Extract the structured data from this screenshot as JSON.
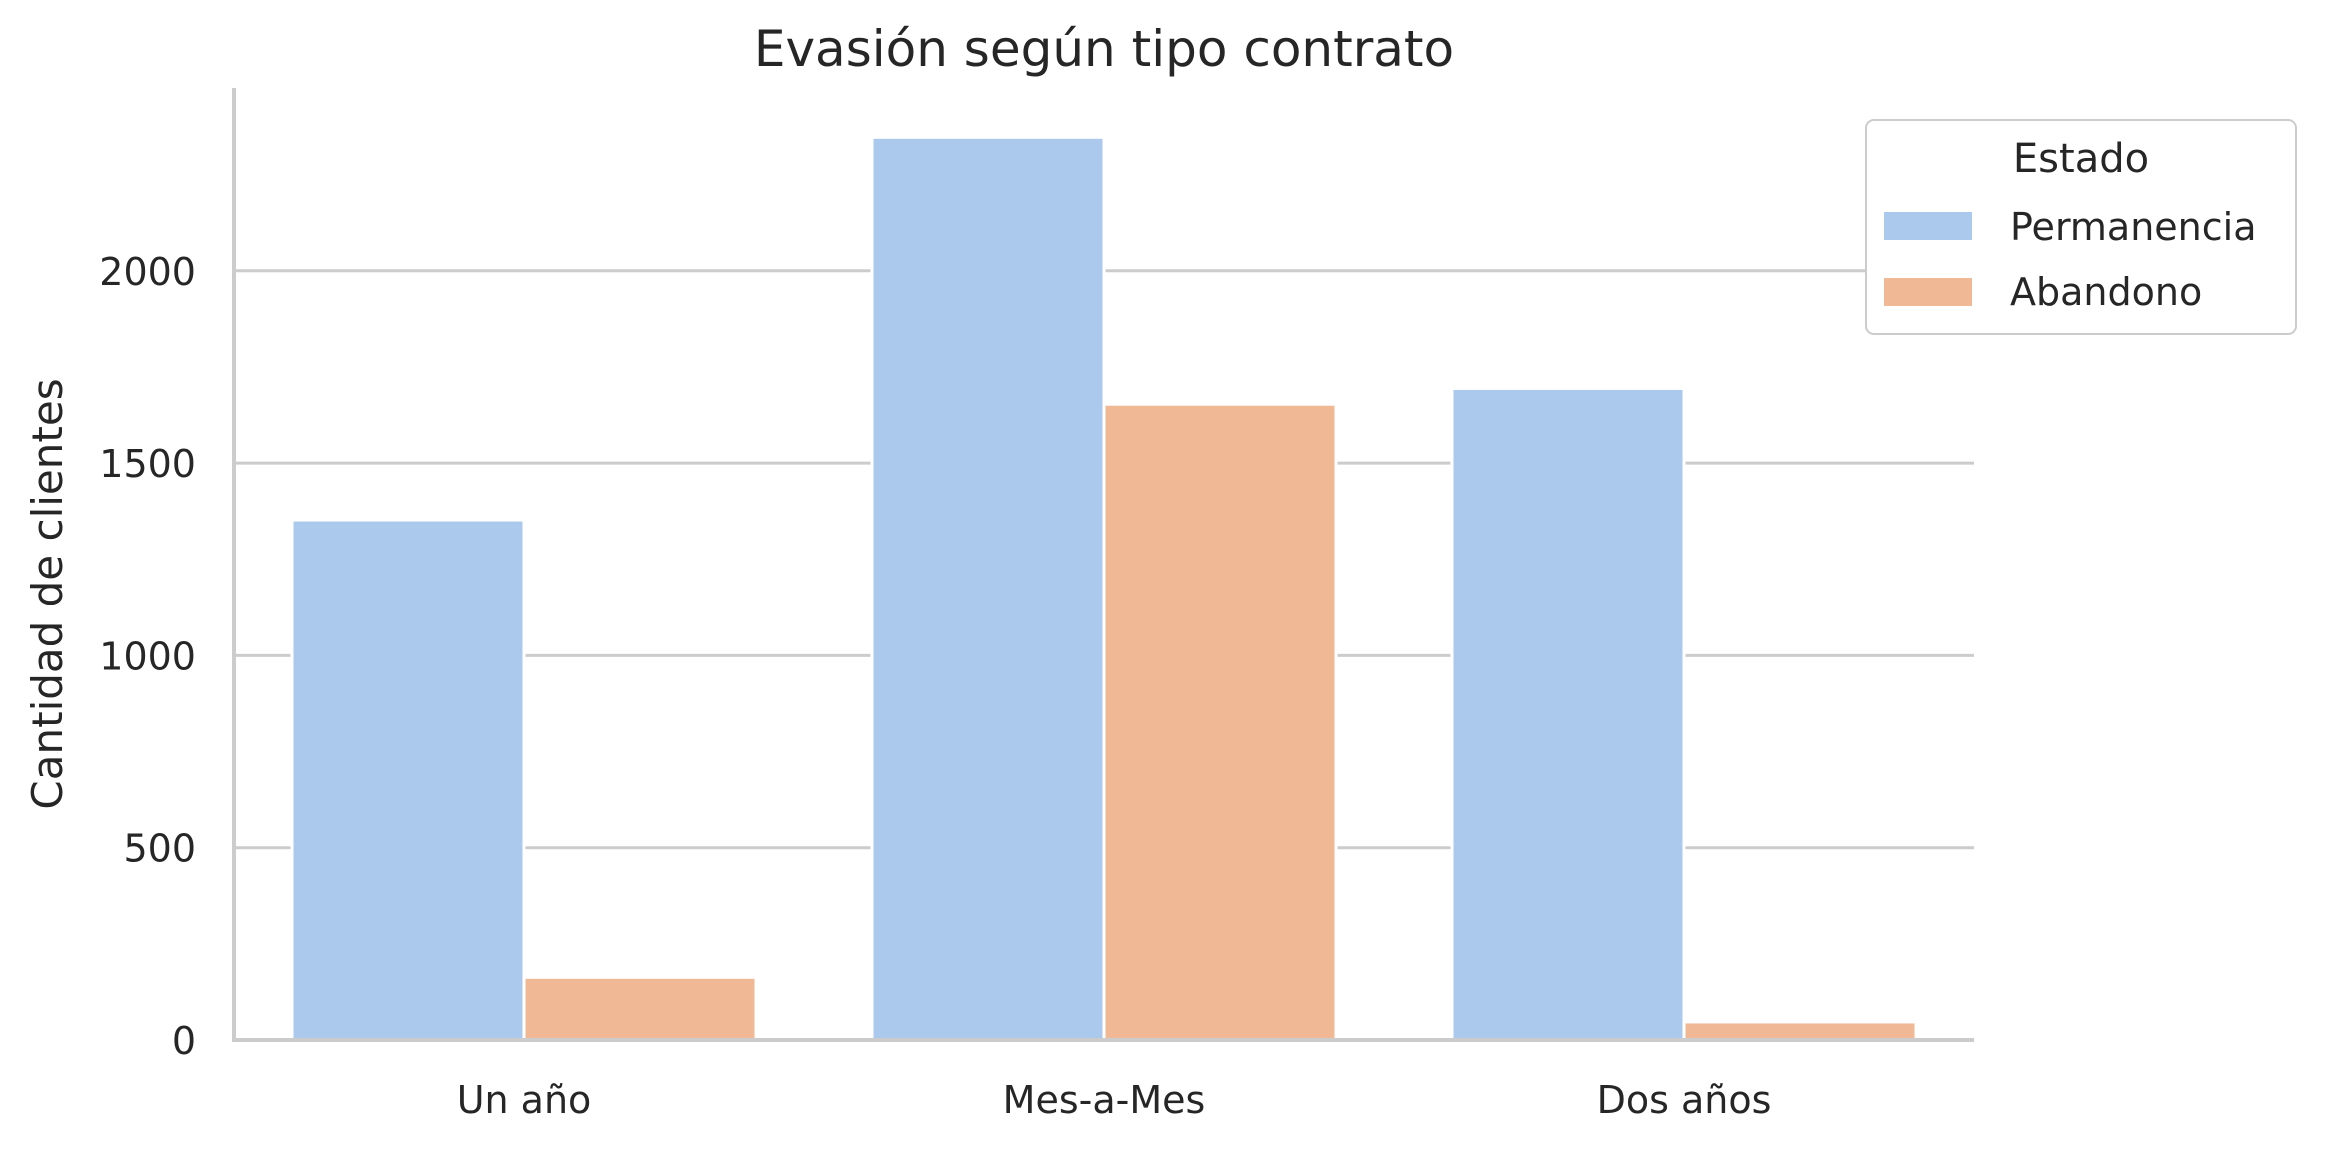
{
  "chart_data": {
    "type": "bar",
    "title": "Evasión según tipo contrato",
    "xlabel": "",
    "ylabel": "Cantidad de clientes",
    "categories": [
      "Un año",
      "Mes-a-Mes",
      "Dos años"
    ],
    "series": [
      {
        "name": "Permanencia",
        "color": "#abc9ec",
        "values": [
          1352,
          2347,
          1694
        ]
      },
      {
        "name": "Abandono",
        "color": "#f0b894",
        "values": [
          163,
          1653,
          47
        ]
      }
    ],
    "ylim": [
      0,
      2470
    ],
    "yticks": [
      0,
      500,
      1000,
      1500,
      2000
    ],
    "grid": "horizontal",
    "legend": {
      "title": "Estado",
      "placement": "top-right"
    }
  }
}
